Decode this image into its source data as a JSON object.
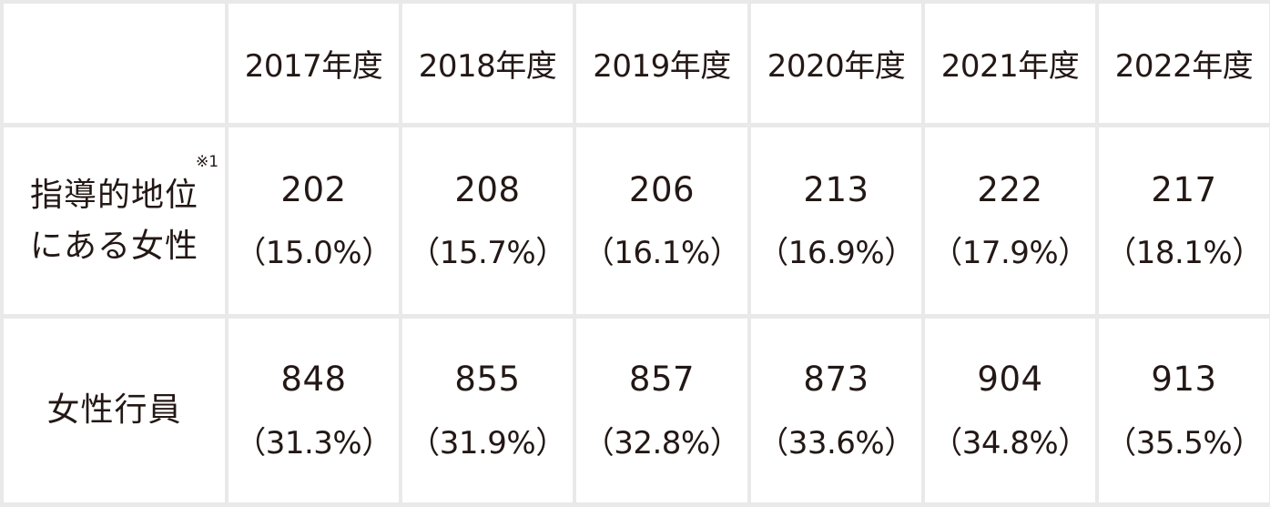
{
  "table": {
    "years": [
      "2017年度",
      "2018年度",
      "2019年度",
      "2020年度",
      "2021年度",
      "2022年度"
    ],
    "rows": [
      {
        "label_lines": [
          "指導的地位",
          "にある女性"
        ],
        "note": "※1",
        "values": [
          {
            "count": "202",
            "pct": "（15.0%）"
          },
          {
            "count": "208",
            "pct": "（15.7%）"
          },
          {
            "count": "206",
            "pct": "（16.1%）"
          },
          {
            "count": "213",
            "pct": "（16.9%）"
          },
          {
            "count": "222",
            "pct": "（17.9%）"
          },
          {
            "count": "217",
            "pct": "（18.1%）"
          }
        ]
      },
      {
        "label_lines": [
          "女性行員"
        ],
        "values": [
          {
            "count": "848",
            "pct": "（31.3%）"
          },
          {
            "count": "855",
            "pct": "（31.9%）"
          },
          {
            "count": "857",
            "pct": "（32.8%）"
          },
          {
            "count": "873",
            "pct": "（33.6%）"
          },
          {
            "count": "904",
            "pct": "（34.8%）"
          },
          {
            "count": "913",
            "pct": "（35.5%）"
          }
        ]
      }
    ],
    "colors": {
      "text": "#231815",
      "grid": "#e9e9e9",
      "cell": "#ffffff"
    }
  }
}
